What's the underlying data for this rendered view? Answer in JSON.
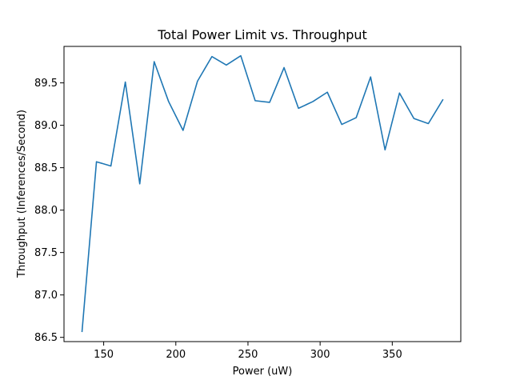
{
  "chart_data": {
    "type": "line",
    "title": "Total Power Limit vs. Throughput",
    "xlabel": "Power (uW)",
    "ylabel": "Throughput (Inferences/Second)",
    "xlim": [
      122.5,
      397.5
    ],
    "ylim": [
      86.45,
      89.93
    ],
    "xticks": [
      150,
      200,
      250,
      300,
      350
    ],
    "yticks": [
      86.5,
      87.0,
      87.5,
      88.0,
      88.5,
      89.0,
      89.5
    ],
    "xtick_labels": [
      "150",
      "200",
      "250",
      "300",
      "350"
    ],
    "ytick_labels": [
      "86.5",
      "87.0",
      "87.5",
      "88.0",
      "88.5",
      "89.0",
      "89.5"
    ],
    "grid": false,
    "series": [
      {
        "color": "#1f77b4",
        "x": [
          135,
          145,
          155,
          165,
          175,
          185,
          195,
          205,
          215,
          225,
          235,
          245,
          255,
          265,
          275,
          285,
          295,
          305,
          315,
          325,
          335,
          345,
          355,
          365,
          375,
          385
        ],
        "y": [
          86.57,
          88.57,
          88.52,
          89.51,
          88.31,
          89.75,
          89.28,
          88.94,
          89.52,
          89.81,
          89.71,
          89.82,
          89.29,
          89.27,
          89.68,
          89.2,
          89.28,
          89.39,
          89.01,
          89.09,
          89.57,
          88.71,
          89.38,
          89.08,
          89.02,
          89.3
        ]
      }
    ]
  }
}
